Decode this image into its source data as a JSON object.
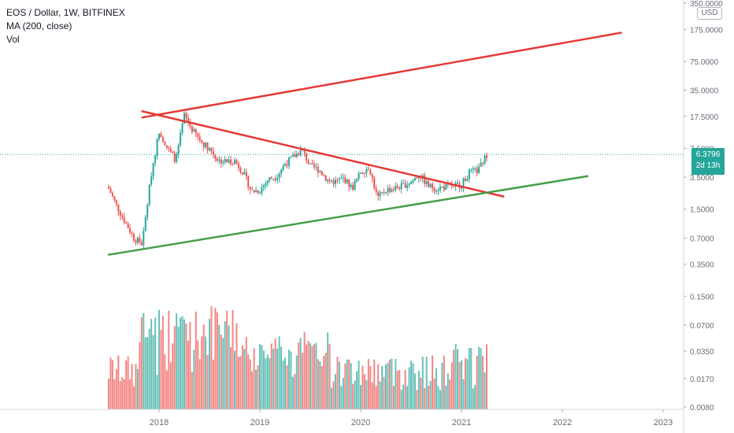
{
  "legend": {
    "symbol": "EOS / Dollar, 1W, BITFINEX",
    "ma": "MA (200, close)",
    "vol": "Vol"
  },
  "currency": "USD",
  "last_price": {
    "value": "6.3796",
    "countdown": "2d 13h"
  },
  "colors": {
    "up": "#26a69a",
    "down": "#ef5350",
    "trend_red": "#e53935",
    "trend_green": "#43a047"
  },
  "chart_data": {
    "type": "candlestick",
    "title": "EOS / Dollar, 1W, BITFINEX",
    "scale": "log",
    "x_ticks": [
      "2018",
      "2019",
      "2020",
      "2021",
      "2022",
      "2023"
    ],
    "y_ticks": [
      "350.0000",
      "175.0000",
      "75.0000",
      "35.0000",
      "17.5000",
      "7.5000",
      "3.5000",
      "1.5000",
      "0.7000",
      "0.3500",
      "0.1500",
      "0.0700",
      "0.0350",
      "0.0170",
      "0.0080"
    ],
    "ylim": [
      0.008,
      350
    ],
    "last_price": 6.3796,
    "price_path": [
      [
        "2017-07",
        2.6
      ],
      [
        "2017-08",
        1.6
      ],
      [
        "2017-10",
        0.7
      ],
      [
        "2017-11",
        0.6
      ],
      [
        "2017-12",
        3.5
      ],
      [
        "2018-01",
        12.0
      ],
      [
        "2018-02",
        7.5
      ],
      [
        "2018-03",
        5.5
      ],
      [
        "2018-04",
        18.0
      ],
      [
        "2018-05",
        12.0
      ],
      [
        "2018-06",
        9.0
      ],
      [
        "2018-07",
        7.5
      ],
      [
        "2018-08",
        5.5
      ],
      [
        "2018-09",
        5.3
      ],
      [
        "2018-10",
        5.4
      ],
      [
        "2018-11",
        4.0
      ],
      [
        "2018-12",
        2.4
      ],
      [
        "2019-01",
        2.5
      ],
      [
        "2019-02",
        3.3
      ],
      [
        "2019-03",
        3.6
      ],
      [
        "2019-04",
        5.0
      ],
      [
        "2019-05",
        6.0
      ],
      [
        "2019-06",
        7.2
      ],
      [
        "2019-07",
        4.7
      ],
      [
        "2019-08",
        4.3
      ],
      [
        "2019-09",
        3.3
      ],
      [
        "2019-10",
        3.1
      ],
      [
        "2019-11",
        3.4
      ],
      [
        "2019-12",
        2.6
      ],
      [
        "2020-01",
        4.0
      ],
      [
        "2020-02",
        4.6
      ],
      [
        "2020-03",
        2.0
      ],
      [
        "2020-04",
        2.5
      ],
      [
        "2020-05",
        2.6
      ],
      [
        "2020-06",
        2.8
      ],
      [
        "2020-07",
        3.1
      ],
      [
        "2020-08",
        3.8
      ],
      [
        "2020-09",
        2.8
      ],
      [
        "2020-10",
        2.6
      ],
      [
        "2020-11",
        2.7
      ],
      [
        "2020-12",
        2.8
      ],
      [
        "2021-01",
        2.9
      ],
      [
        "2021-02",
        4.0
      ],
      [
        "2021-03",
        4.2
      ],
      [
        "2021-04",
        6.4
      ]
    ],
    "trendlines": [
      {
        "color": "red",
        "from": [
          "2017-11",
          17.0
        ],
        "to": [
          "2022-08",
          160.0
        ]
      },
      {
        "color": "red",
        "from": [
          "2017-11",
          20.0
        ],
        "to": [
          "2021-06",
          2.1
        ]
      },
      {
        "color": "green",
        "from": [
          "2017-07",
          0.45
        ],
        "to": [
          "2022-04",
          3.6
        ]
      }
    ],
    "volume_panel": "Vol"
  }
}
